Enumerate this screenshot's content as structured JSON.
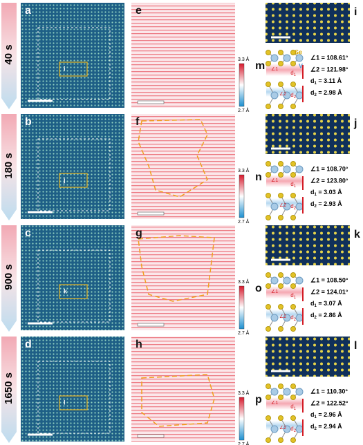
{
  "rows": [
    {
      "time": "40 s",
      "image_label": "a",
      "box_label": "i",
      "strain_label": "e",
      "cbar_max": "3.3 Å",
      "cbar_min": "2.7 Å",
      "hrtem_label": "i",
      "model_label": "m",
      "angle1": "∠1 = 108.61°",
      "angle2": "∠2 = 121.98°",
      "d1": {
        "sym": "d",
        "sub": "1",
        "value": " = 3.11 Å"
      },
      "d2": {
        "sym": "d",
        "sub": "2",
        "value": " = 2.98 Å"
      }
    },
    {
      "time": "180 s",
      "image_label": "b",
      "box_label": "j",
      "strain_label": "f",
      "cbar_max": "3.3 Å",
      "cbar_min": "2.7 Å",
      "hrtem_label": "j",
      "model_label": "n",
      "angle1": "∠1 = 108.70°",
      "angle2": "∠2 = 123.80°",
      "d1": {
        "sym": "d",
        "sub": "1",
        "value": " = 3.03 Å"
      },
      "d2": {
        "sym": "d",
        "sub": "2",
        "value": " = 2.93 Å"
      }
    },
    {
      "time": "900 s",
      "image_label": "c",
      "box_label": "k",
      "strain_label": "g",
      "cbar_max": "3.3 Å",
      "cbar_min": "2.7 Å",
      "hrtem_label": "k",
      "model_label": "o",
      "angle1": "∠1 = 108.50°",
      "angle2": "∠2 = 124.01°",
      "d1": {
        "sym": "d",
        "sub": "1",
        "value": " = 3.07 Å"
      },
      "d2": {
        "sym": "d",
        "sub": "2",
        "value": " = 2.86 Å"
      }
    },
    {
      "time": "1650 s",
      "image_label": "d",
      "box_label": "l",
      "strain_label": "h",
      "cbar_max": "3.3 Å",
      "cbar_min": "2.7 Å",
      "hrtem_label": "l",
      "model_label": "p",
      "angle1": "∠1 = 110.30°",
      "angle2": "∠2 = 122.52°",
      "d1": {
        "sym": "d",
        "sub": "1",
        "value": " = 2.96 Å"
      },
      "d2": {
        "sym": "d",
        "sub": "2",
        "value": " = 2.94 Å"
      }
    }
  ],
  "model_marks": {
    "angle1": "∠1",
    "angle2": "∠2",
    "d": "d",
    "d1_sub": "1",
    "d2_sub": "2"
  },
  "atom_labels": {
    "se": "Se",
    "v": "V"
  }
}
